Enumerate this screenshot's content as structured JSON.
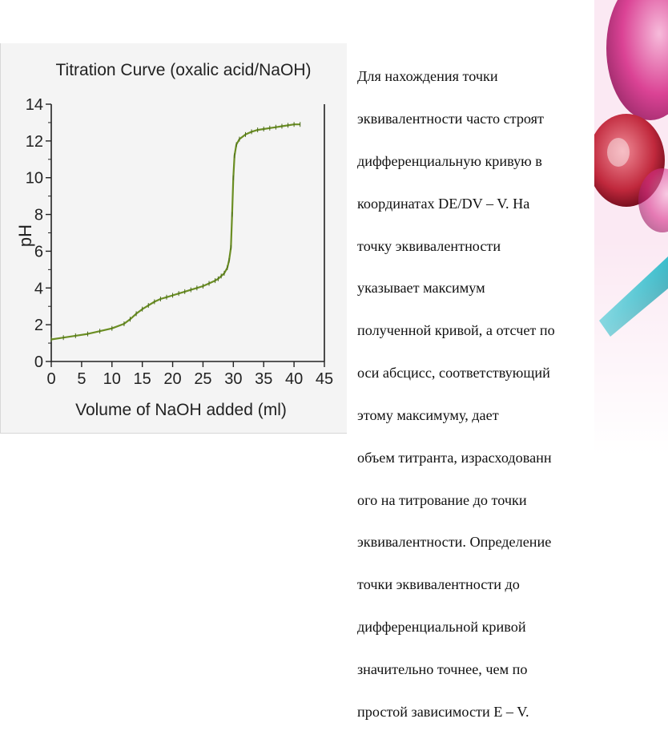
{
  "colors": {
    "curve": "#6b8e23",
    "marker": "#4a6a1a",
    "axis": "#222222",
    "panel_bg": "#f4f4f4",
    "text": "#111111",
    "deco_pink": "#d7308a",
    "deco_red": "#c0283c",
    "deco_cyan": "#2ab8c8"
  },
  "chart_data": {
    "type": "line",
    "title": "Titration Curve (oxalic acid/NaOH)",
    "xlabel": "Volume of NaOH added (ml)",
    "ylabel": "pH",
    "xlim": [
      0,
      45
    ],
    "ylim": [
      0,
      14
    ],
    "x_ticks": [
      "0",
      "5",
      "10",
      "15",
      "20",
      "25",
      "30",
      "35",
      "40",
      "45"
    ],
    "y_ticks": [
      "0",
      "2",
      "4",
      "6",
      "8",
      "10",
      "12",
      "14"
    ],
    "grid": false,
    "legend": "none",
    "series": [
      {
        "x": [
          0,
          2,
          4,
          6,
          8,
          10,
          12,
          13,
          14,
          15,
          16,
          17,
          18,
          19,
          20,
          21,
          22,
          23,
          24,
          25,
          26,
          27,
          27.5,
          28,
          28.5,
          29,
          29.3,
          29.6,
          29.8,
          30,
          30.2,
          30.5,
          31,
          32,
          33,
          34,
          35,
          36,
          37,
          38,
          39,
          40,
          41
        ],
        "y": [
          1.2,
          1.3,
          1.4,
          1.5,
          1.65,
          1.8,
          2.05,
          2.3,
          2.6,
          2.85,
          3.05,
          3.25,
          3.4,
          3.5,
          3.6,
          3.7,
          3.8,
          3.9,
          4.0,
          4.1,
          4.25,
          4.4,
          4.5,
          4.65,
          4.8,
          5.1,
          5.5,
          6.2,
          8.0,
          10.0,
          11.2,
          11.8,
          12.1,
          12.35,
          12.5,
          12.6,
          12.65,
          12.7,
          12.75,
          12.8,
          12.85,
          12.9,
          12.9
        ]
      }
    ]
  },
  "text_block": {
    "line1": "Для нахождения точки",
    "line2": "эквивалентности часто строят",
    "line3": "дифференциальную кривую в",
    "line4": "координатах DE/DV – V. На",
    "line5": "точку эквивалентности",
    "line6": "указывает максимум",
    "line7": "полученной кривой, а отсчет по",
    "line8": "оси абсцисс, соответствующий",
    "line9": "этому максимуму, дает",
    "line10": "объем титранта, израсходованн",
    "line11": "ого на титрование до точки",
    "line12": "эквивалентности. Определение",
    "line13": "точки эквивалентности до",
    "line14": "дифференциальной кривой",
    "line15": "значительно точнее, чем по",
    "line16": "простой зависимости E – V."
  }
}
